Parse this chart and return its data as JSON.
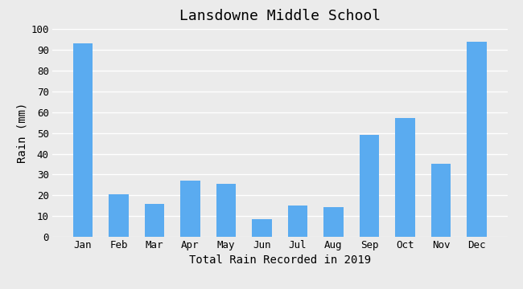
{
  "title": "Lansdowne Middle School",
  "xlabel": "Total Rain Recorded in 2019",
  "ylabel": "Rain (mm)",
  "months": [
    "Jan",
    "Feb",
    "Mar",
    "Apr",
    "May",
    "Jun",
    "Jul",
    "Aug",
    "Sep",
    "Oct",
    "Nov",
    "Dec"
  ],
  "values": [
    93,
    20.5,
    16,
    27,
    25.5,
    8.5,
    15,
    14.5,
    49,
    57,
    35,
    94
  ],
  "bar_color": "#5aabf0",
  "ylim": [
    0,
    100
  ],
  "yticks": [
    0,
    10,
    20,
    30,
    40,
    50,
    60,
    70,
    80,
    90,
    100
  ],
  "background_color": "#ebebeb",
  "plot_background_color": "#ebebeb",
  "title_fontsize": 13,
  "axis_label_fontsize": 10,
  "tick_fontsize": 9,
  "bar_width": 0.55
}
